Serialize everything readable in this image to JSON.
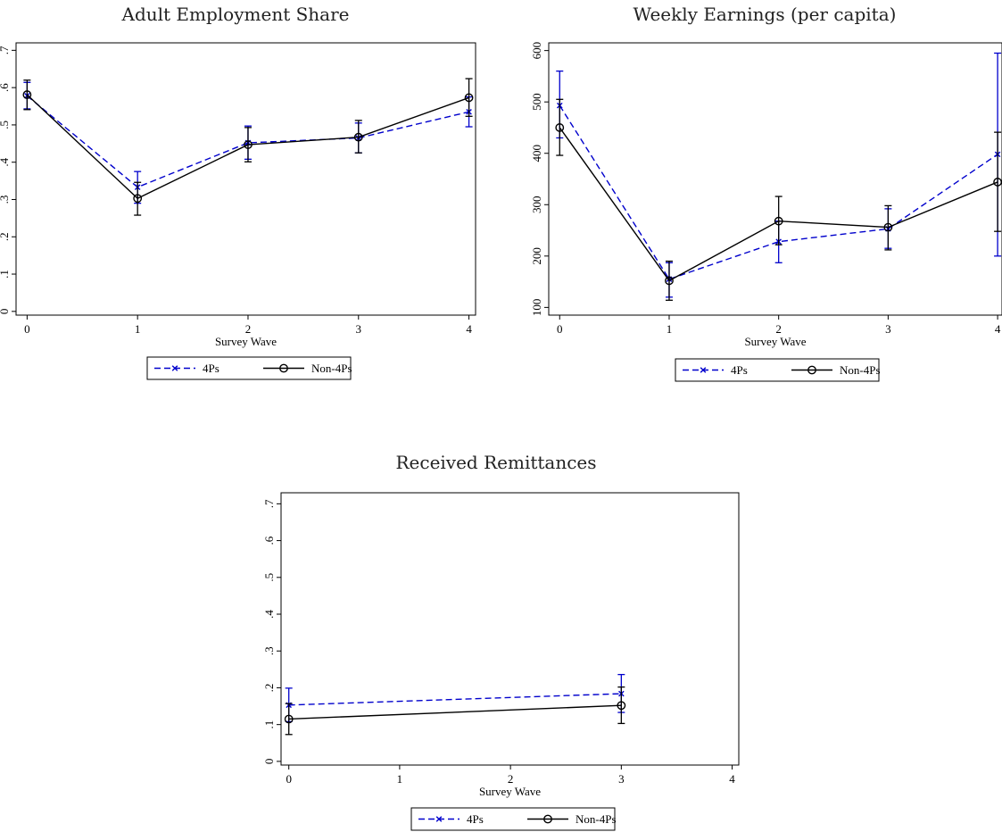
{
  "chart_data": [
    {
      "type": "line",
      "title": "Adult Employment Share",
      "xlabel": "Survey Wave",
      "ylabel": "",
      "x": [
        0,
        1,
        2,
        3,
        4
      ],
      "xlim": [
        -0.1,
        4.06
      ],
      "ylim": [
        -0.01,
        0.72
      ],
      "yticks": [
        0,
        0.1,
        0.2,
        0.3,
        0.4,
        0.5,
        0.6,
        0.7
      ],
      "ytick_labels": [
        "0",
        ".1",
        ".2",
        ".3",
        ".4",
        ".5",
        ".6",
        ".7"
      ],
      "xticks": [
        0,
        1,
        2,
        3,
        4
      ],
      "series": [
        {
          "name": "4Ps",
          "color": "#0000cc",
          "style": "dashed",
          "marker": "x",
          "values": [
            0.578,
            0.333,
            0.452,
            0.465,
            0.535
          ],
          "lo": [
            0.543,
            0.29,
            0.408,
            0.425,
            0.495
          ],
          "hi": [
            0.614,
            0.375,
            0.497,
            0.505,
            0.575
          ]
        },
        {
          "name": "Non-4Ps",
          "color": "#000000",
          "style": "solid",
          "marker": "circle",
          "values": [
            0.581,
            0.303,
            0.447,
            0.467,
            0.573
          ],
          "lo": [
            0.541,
            0.258,
            0.401,
            0.425,
            0.523
          ],
          "hi": [
            0.62,
            0.346,
            0.493,
            0.512,
            0.624
          ]
        }
      ],
      "legend": "below"
    },
    {
      "type": "line",
      "title": "Weekly Earnings (per capita)",
      "xlabel": "Survey Wave",
      "ylabel": "",
      "x": [
        0,
        1,
        2,
        3,
        4
      ],
      "xlim": [
        -0.1,
        4.04
      ],
      "ylim": [
        85,
        615
      ],
      "yticks": [
        100,
        200,
        300,
        400,
        500,
        600
      ],
      "ytick_labels": [
        "100",
        "200",
        "300",
        "400",
        "500",
        "600"
      ],
      "xticks": [
        0,
        1,
        2,
        3,
        4
      ],
      "series": [
        {
          "name": "4Ps",
          "color": "#0000cc",
          "style": "dashed",
          "marker": "x",
          "values": [
            493,
            155,
            228,
            253,
            398
          ],
          "lo": [
            430,
            120,
            187,
            215,
            200
          ],
          "hi": [
            560,
            187,
            268,
            292,
            595
          ]
        },
        {
          "name": "Non-4Ps",
          "color": "#000000",
          "style": "solid",
          "marker": "circle",
          "values": [
            450,
            152,
            268,
            256,
            344
          ],
          "lo": [
            396,
            114,
            222,
            212,
            248
          ],
          "hi": [
            505,
            190,
            316,
            298,
            441
          ]
        }
      ],
      "legend": "below"
    },
    {
      "type": "line",
      "title": "Received Remittances",
      "xlabel": "Survey Wave",
      "ylabel": "",
      "x": [
        0,
        3
      ],
      "xlim": [
        -0.07,
        4.06
      ],
      "ylim": [
        -0.01,
        0.73
      ],
      "yticks": [
        0,
        0.1,
        0.2,
        0.3,
        0.4,
        0.5,
        0.6,
        0.7
      ],
      "ytick_labels": [
        "0",
        ".1",
        ".2",
        ".3",
        ".4",
        ".5",
        ".6",
        ".7"
      ],
      "xticks": [
        0,
        1,
        2,
        3,
        4
      ],
      "series": [
        {
          "name": "4Ps",
          "color": "#0000cc",
          "style": "dashed",
          "marker": "x",
          "values": [
            0.153,
            0.184
          ],
          "lo": [
            0.108,
            0.133
          ],
          "hi": [
            0.199,
            0.236
          ]
        },
        {
          "name": "Non-4Ps",
          "color": "#000000",
          "style": "solid",
          "marker": "circle",
          "values": [
            0.115,
            0.152
          ],
          "lo": [
            0.073,
            0.103
          ],
          "hi": [
            0.157,
            0.202
          ]
        }
      ],
      "legend": "below"
    }
  ]
}
